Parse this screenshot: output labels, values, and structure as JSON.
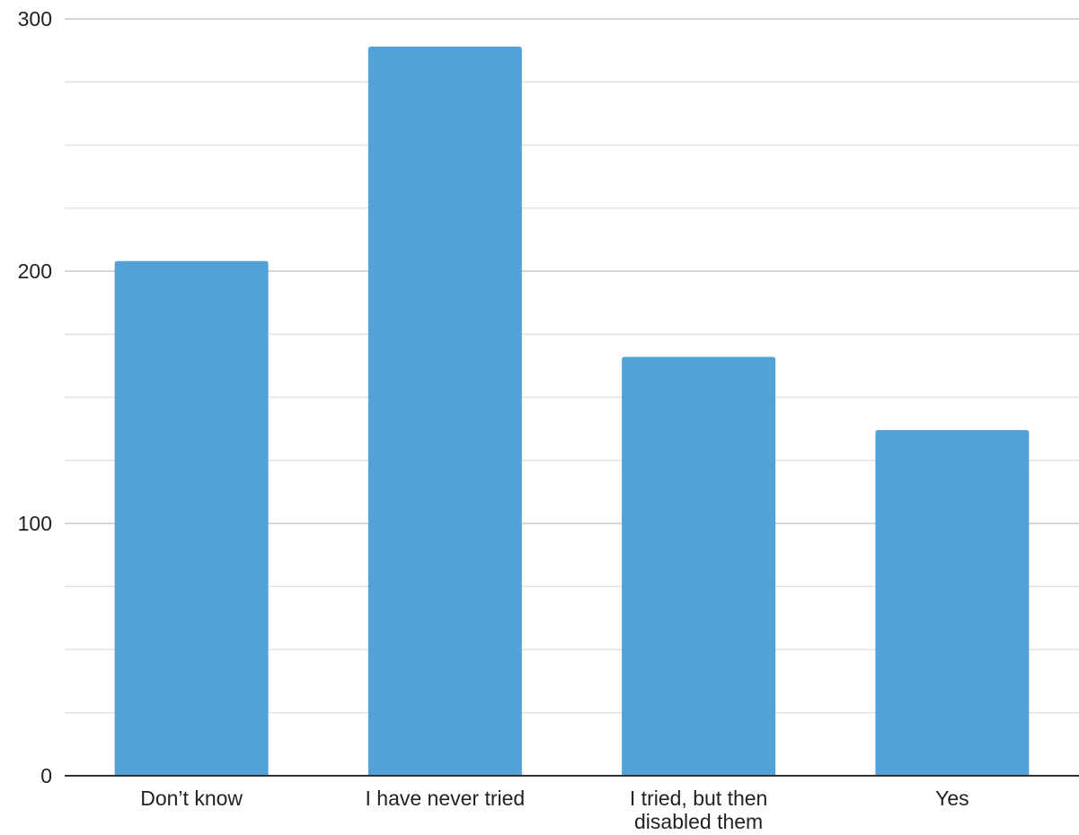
{
  "chart_data": {
    "type": "bar",
    "categories": [
      [
        "Don’t know"
      ],
      [
        "I have never tried"
      ],
      [
        "I tried, but then",
        "disabled them"
      ],
      [
        "Yes"
      ]
    ],
    "values": [
      204,
      289,
      166,
      137
    ],
    "ylim": [
      0,
      300
    ],
    "yticks": [
      0,
      100,
      200,
      300
    ],
    "minor_gridlines_per_major": 3,
    "grid": true,
    "legend": false,
    "colors": {
      "bar": "#52a2d9",
      "major_grid": "#c8c8c8",
      "minor_grid": "#e2e2e2",
      "axis": "#333333"
    }
  }
}
